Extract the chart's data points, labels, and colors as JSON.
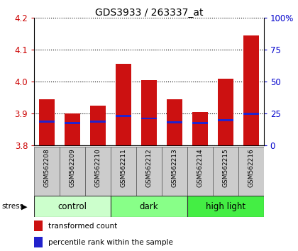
{
  "title": "GDS3933 / 263337_at",
  "samples": [
    "GSM562208",
    "GSM562209",
    "GSM562210",
    "GSM562211",
    "GSM562212",
    "GSM562213",
    "GSM562214",
    "GSM562215",
    "GSM562216"
  ],
  "transformed_counts": [
    3.945,
    3.9,
    3.925,
    4.055,
    4.005,
    3.945,
    3.905,
    4.01,
    4.145
  ],
  "percentile_values": [
    3.875,
    3.87,
    3.875,
    3.893,
    3.885,
    3.872,
    3.87,
    3.88,
    3.9
  ],
  "ylim": [
    3.8,
    4.2
  ],
  "y2lim": [
    0,
    100
  ],
  "yticks": [
    3.8,
    3.9,
    4.0,
    4.1,
    4.2
  ],
  "y2ticks": [
    0,
    25,
    50,
    75,
    100
  ],
  "groups": [
    {
      "name": "control",
      "indices": [
        0,
        1,
        2
      ],
      "color": "#ccffcc"
    },
    {
      "name": "dark",
      "indices": [
        3,
        4,
        5
      ],
      "color": "#88ff88"
    },
    {
      "name": "high light",
      "indices": [
        6,
        7,
        8
      ],
      "color": "#44ee44"
    }
  ],
  "bar_color": "#cc1111",
  "pct_color": "#2222cc",
  "bar_width": 0.6,
  "y_tick_color": "#cc0000",
  "y2_tick_color": "#0000cc"
}
